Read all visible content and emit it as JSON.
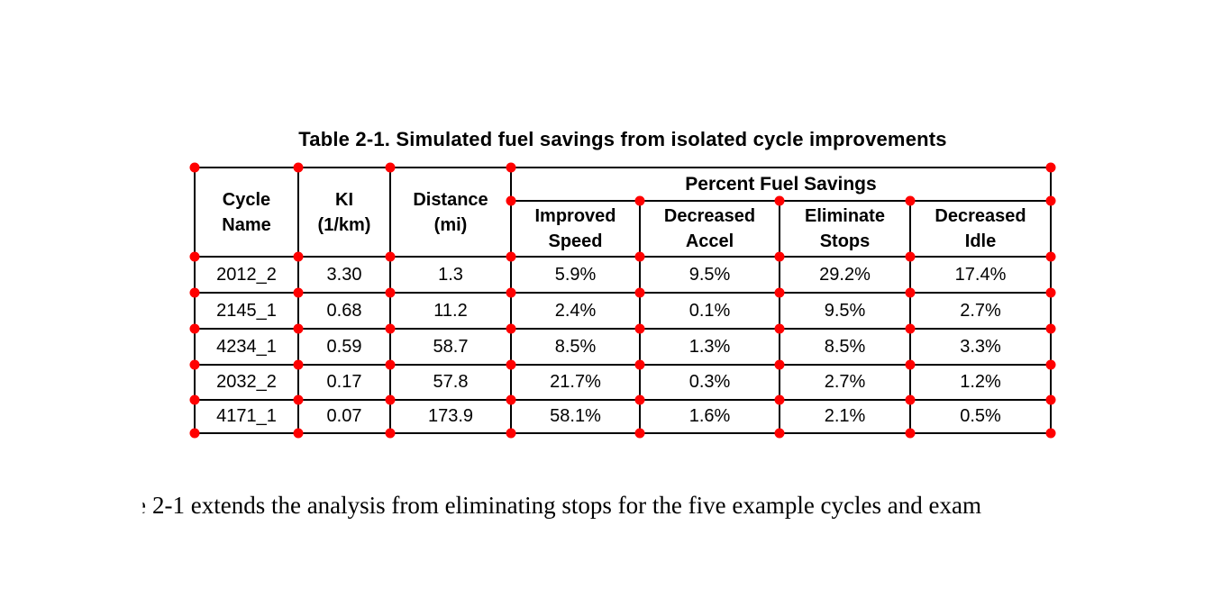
{
  "page": {
    "background": "#ffffff"
  },
  "caption": "Table 2-1. Simulated fuel savings from isolated cycle improvements",
  "table": {
    "group_header": "Percent Fuel Savings",
    "col_headers": {
      "cycle_name": "Cycle\nName",
      "ki": "KI\n(1/km)",
      "distance": "Distance\n(mi)",
      "improved_speed": "Improved\nSpeed",
      "decreased_accel": "Decreased\nAccel",
      "eliminate_stops": "Eliminate\nStops",
      "decreased_idle": "Decreased\nIdle"
    },
    "rows": [
      {
        "cycle_name": "2012_2",
        "ki": "3.30",
        "distance_mi": "1.3",
        "improved_speed": "5.9%",
        "decreased_accel": "9.5%",
        "eliminate_stops": "29.2%",
        "decreased_idle": "17.4%"
      },
      {
        "cycle_name": "2145_1",
        "ki": "0.68",
        "distance_mi": "11.2",
        "improved_speed": "2.4%",
        "decreased_accel": "0.1%",
        "eliminate_stops": "9.5%",
        "decreased_idle": "2.7%"
      },
      {
        "cycle_name": "4234_1",
        "ki": "0.59",
        "distance_mi": "58.7",
        "improved_speed": "8.5%",
        "decreased_accel": "1.3%",
        "eliminate_stops": "8.5%",
        "decreased_idle": "3.3%"
      },
      {
        "cycle_name": "2032_2",
        "ki": "0.17",
        "distance_mi": "57.8",
        "improved_speed": "21.7%",
        "decreased_accel": "0.3%",
        "eliminate_stops": "2.7%",
        "decreased_idle": "1.2%"
      },
      {
        "cycle_name": "4171_1",
        "ki": "0.07",
        "distance_mi": "173.9",
        "improved_speed": "58.1%",
        "decreased_accel": "1.6%",
        "eliminate_stops": "2.1%",
        "decreased_idle": "0.5%"
      }
    ],
    "border_color": "#000000"
  },
  "markers": {
    "color": "#ff0000",
    "meaning": "red dots at table grid intersections"
  },
  "body_text": {
    "leading_clipped_char": "e",
    "sentence": "2-1 extends the analysis from eliminating stops for the five example cycles and exam"
  }
}
